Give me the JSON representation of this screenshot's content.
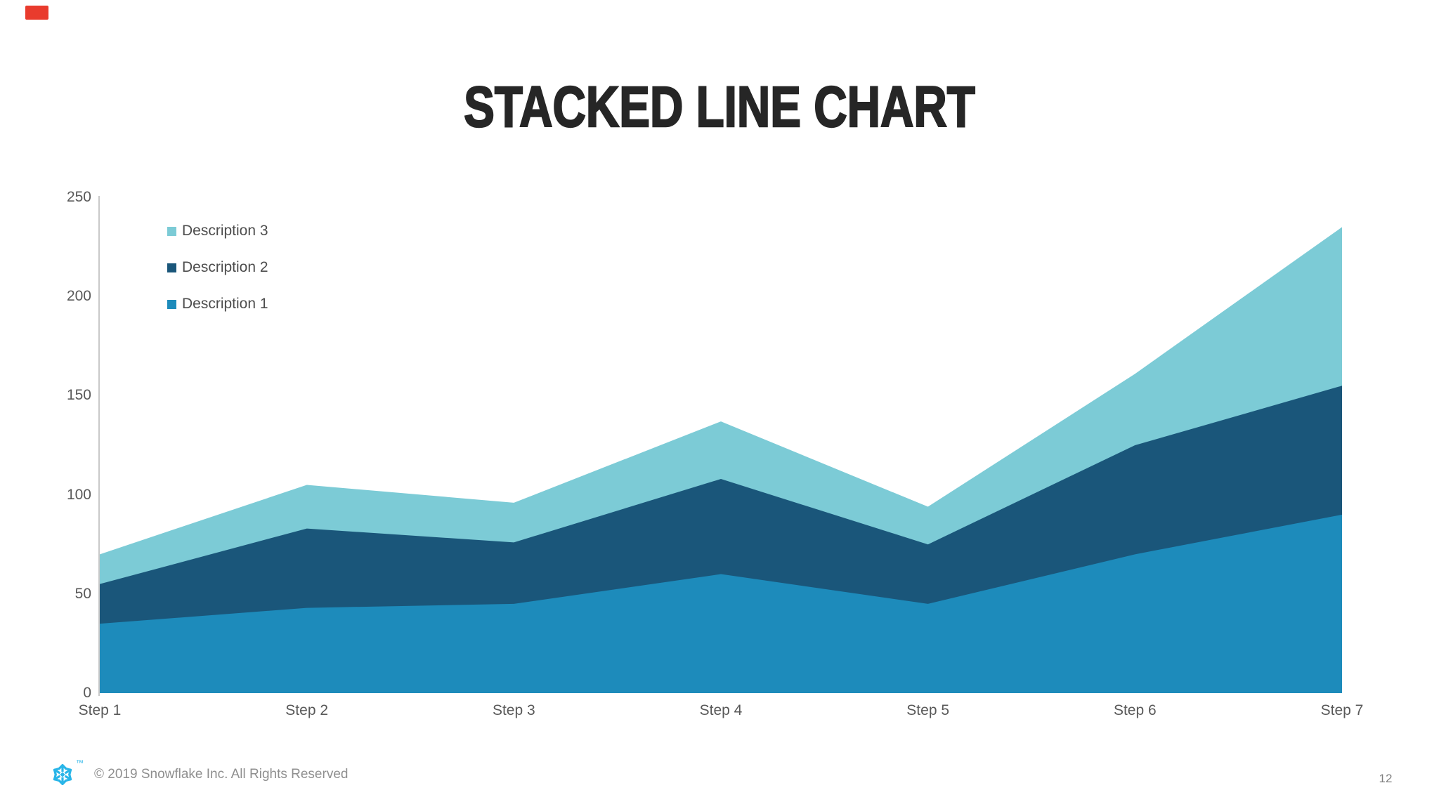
{
  "slide": {
    "title": "STACKED LINE CHART",
    "page_number": "12",
    "footer_copyright": "© 2019 Snowflake Inc. All Rights Reserved",
    "trademark": "™"
  },
  "colors": {
    "series1": "#1D8BBB",
    "series2": "#1A567A",
    "series3": "#7CCBD6",
    "snowflake_accent": "#29B5E8",
    "red_marker": "#E93B2D",
    "axis_line": "#C9C9C9",
    "axis_text": "#595959",
    "legend_text": "#4D4D4D",
    "title_text": "#262626",
    "footer_text": "#8F8F8F",
    "page_number_text": "#808080"
  },
  "chart_data": {
    "type": "area",
    "stacked": true,
    "title": "STACKED LINE CHART",
    "categories": [
      "Step 1",
      "Step 2",
      "Step 3",
      "Step 4",
      "Step 5",
      "Step 6",
      "Step 7"
    ],
    "series": [
      {
        "name": "Description 1",
        "color_key": "series1",
        "values": [
          35,
          43,
          45,
          60,
          45,
          70,
          90
        ]
      },
      {
        "name": "Description 2",
        "color_key": "series2",
        "values": [
          20,
          40,
          31,
          48,
          30,
          55,
          65
        ]
      },
      {
        "name": "Description 3",
        "color_key": "series3",
        "values": [
          15,
          22,
          20,
          29,
          19,
          36,
          80
        ]
      }
    ],
    "stacked_totals": [
      70,
      105,
      96,
      137,
      94,
      161,
      235
    ],
    "ylim": [
      0,
      250
    ],
    "yticks": [
      0,
      50,
      100,
      150,
      200,
      250
    ],
    "xlabel": "",
    "ylabel": "",
    "grid": false,
    "legend_position": "top-left-inside",
    "legend_order": [
      "Description 3",
      "Description 2",
      "Description 1"
    ]
  }
}
